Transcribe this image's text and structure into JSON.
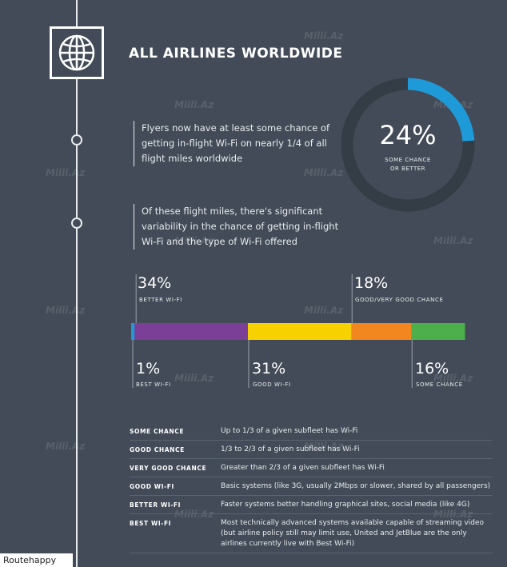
{
  "title": "ALL AIRLINES WORLDWIDE",
  "icons": {
    "globe": "globe-icon"
  },
  "quotes": [
    "Flyers now have at least some chance of getting in-flight Wi-Fi on nearly 1/4 of all flight miles worldwide",
    "Of these flight miles, there's significant variability in the chance of getting in-flight Wi-Fi and the type of Wi-Fi offered"
  ],
  "chart_data": [
    {
      "type": "pie",
      "values": [
        24,
        76
      ],
      "labels": [
        "SOME CHANCE OR BETTER",
        ""
      ],
      "center_value": "24%",
      "center_label_lines": [
        "SOME CHANCE",
        "OR BETTER"
      ],
      "colors": [
        "#1e9ad8",
        "#343c46"
      ]
    },
    {
      "type": "bar",
      "stacked": true,
      "orientation": "horizontal",
      "categories": [
        "BEST WI-FI",
        "BETTER WI-FI",
        "GOOD WI-FI",
        "GOOD/VERY GOOD CHANCE",
        "SOME CHANCE"
      ],
      "values": [
        1,
        34,
        31,
        18,
        16
      ],
      "value_labels": [
        "1%",
        "34%",
        "31%",
        "18%",
        "16%"
      ],
      "colors": [
        "#1e9ad8",
        "#7b3f98",
        "#f7d200",
        "#f2871f",
        "#4caf4c"
      ]
    }
  ],
  "definitions": [
    {
      "term": "SOME CHANCE",
      "desc": "Up to 1/3 of a given subfleet has Wi-Fi"
    },
    {
      "term": "GOOD CHANCE",
      "desc": "1/3 to 2/3 of a given subfleet has Wi-Fi"
    },
    {
      "term": "VERY GOOD CHANCE",
      "desc": "Greater than 2/3 of a given subfleet has Wi-Fi"
    },
    {
      "term": "GOOD WI-FI",
      "desc": "Basic systems (like 3G, usually 2Mbps or slower, shared by all passengers)"
    },
    {
      "term": "BETTER WI-FI",
      "desc": "Faster systems better handling graphical sites, social media (like 4G)"
    },
    {
      "term": "BEST WI-FI",
      "desc": "Most technically advanced systems available capable of streaming video (but airline policy still may limit use, United and JetBlue are the only airlines currently live with Best Wi-Fi)"
    }
  ],
  "brand": "Routehappy",
  "watermark": "Milli.Az"
}
